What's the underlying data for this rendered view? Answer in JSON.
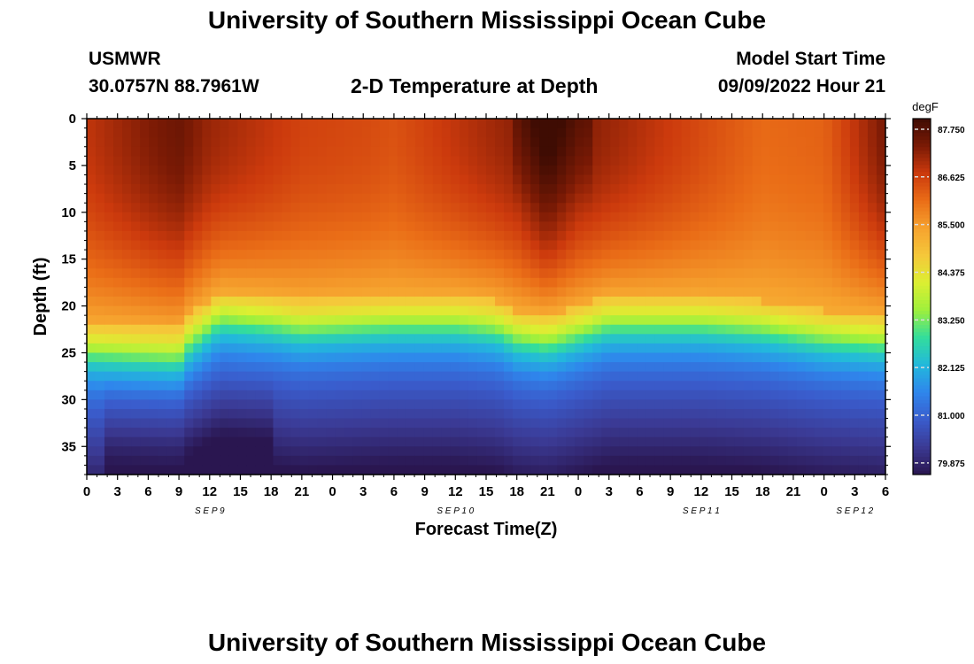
{
  "page": {
    "title": "University of Southern Mississippi Ocean Cube",
    "footer_title": "University of Southern Mississippi Ocean Cube",
    "station": "USMWR",
    "coords": "30.0757N  88.7961W",
    "plot_title": "2-D Temperature at Depth",
    "model_start_label": "Model Start Time",
    "model_start_value": "09/09/2022 Hour 21"
  },
  "chart_data": {
    "type": "heatmap",
    "title": "2-D Temperature at Depth",
    "xlabel": "Forecast Time(Z)",
    "ylabel": "Depth (ft)",
    "x_tick_labels": [
      "0",
      "3",
      "6",
      "9",
      "12",
      "15",
      "18",
      "21",
      "0",
      "3",
      "6",
      "9",
      "12",
      "15",
      "18",
      "21",
      "0",
      "3",
      "6",
      "9",
      "12",
      "15",
      "18",
      "21",
      "0",
      "3",
      "6"
    ],
    "x_range_hours": [
      0,
      78
    ],
    "day_labels": [
      {
        "label": "SEP 9",
        "hour": 12
      },
      {
        "label": "SEP 10",
        "hour": 36
      },
      {
        "label": "SEP 11",
        "hour": 60
      },
      {
        "label": "SEP 12",
        "hour": 75
      }
    ],
    "y_ticks": [
      0,
      5,
      10,
      15,
      20,
      25,
      30,
      35
    ],
    "y_range_ft": [
      0,
      38
    ],
    "y_reversed": true,
    "colorbar": {
      "unit": "degF",
      "min": 79.6,
      "max": 88.0,
      "tick_labels": [
        "87.750",
        "86.625",
        "85.500",
        "84.375",
        "83.250",
        "82.125",
        "81.000",
        "79.875"
      ],
      "ticks": [
        87.75,
        86.625,
        85.5,
        84.375,
        83.25,
        82.125,
        81.0,
        79.875
      ],
      "colormap": [
        "#2a1650",
        "#3b3a94",
        "#3a5ccc",
        "#2f86ec",
        "#22b8dc",
        "#33dd9c",
        "#9ef03c",
        "#dcef32",
        "#f5c83a",
        "#f6a22e",
        "#ea6d17",
        "#cc3a0d",
        "#7a1a05",
        "#3f0c03"
      ]
    },
    "description_nodes": {
      "thermocline_depth_ft_by_hour": [
        [
          0,
          25
        ],
        [
          9,
          25.5
        ],
        [
          10,
          24
        ],
        [
          13,
          21.5
        ],
        [
          18,
          22
        ],
        [
          21,
          22.5
        ],
        [
          30,
          22
        ],
        [
          36,
          22
        ],
        [
          40,
          22.5
        ],
        [
          42,
          23.5
        ],
        [
          45,
          24
        ],
        [
          48,
          23
        ],
        [
          51,
          22
        ],
        [
          54,
          22
        ],
        [
          60,
          22
        ],
        [
          66,
          22.5
        ],
        [
          72,
          23.5
        ],
        [
          78,
          24
        ]
      ],
      "surface_temp_degF_by_hour": [
        [
          0,
          86.8
        ],
        [
          6,
          87.3
        ],
        [
          9,
          87.5
        ],
        [
          12,
          87.1
        ],
        [
          21,
          86.6
        ],
        [
          27,
          86.5
        ],
        [
          30,
          86.4
        ],
        [
          36,
          86.8
        ],
        [
          42,
          87.2
        ],
        [
          45,
          87.9
        ],
        [
          48,
          87.3
        ],
        [
          54,
          86.9
        ],
        [
          60,
          86.5
        ],
        [
          66,
          86.1
        ],
        [
          72,
          86.2
        ],
        [
          78,
          87.4
        ]
      ]
    }
  }
}
